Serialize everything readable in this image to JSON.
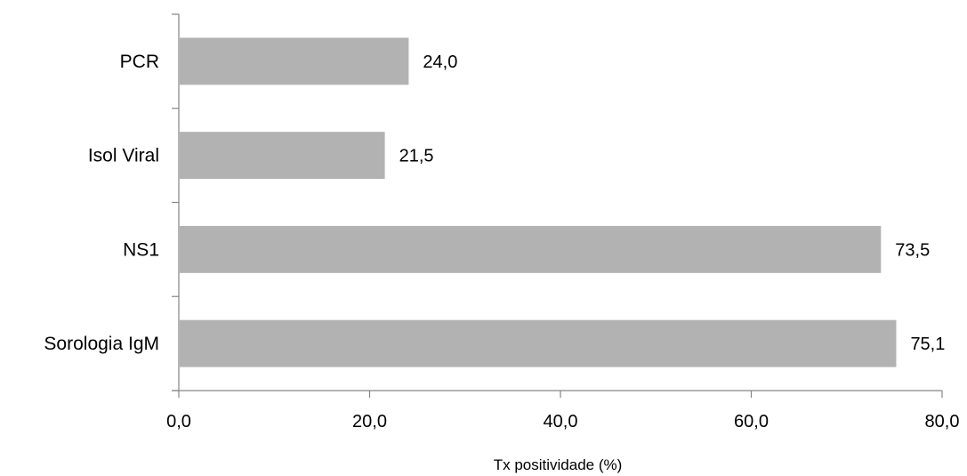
{
  "chart_data": {
    "type": "bar",
    "orientation": "horizontal",
    "categories": [
      "PCR",
      "Isol Viral",
      "NS1",
      "Sorologia IgM"
    ],
    "values": [
      24.0,
      21.5,
      73.5,
      75.1
    ],
    "value_labels": [
      "24,0",
      "21,5",
      "73,5",
      "75,1"
    ],
    "xlabel": "Tx positividade (%)",
    "ylabel": "",
    "xlim": [
      0,
      80
    ],
    "xticks": [
      0,
      20,
      40,
      60,
      80
    ],
    "xtick_labels": [
      "0,0",
      "20,0",
      "40,0",
      "60,0",
      "80,0"
    ],
    "grid": false,
    "legend": "none",
    "colors": {
      "bar": "#b2b2b2",
      "axis": "#868686"
    }
  }
}
